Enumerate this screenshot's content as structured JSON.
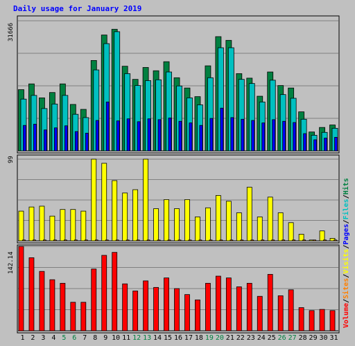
{
  "chart_data": {
    "title": "Daily usage for January 2019",
    "type": "bar",
    "categories": [
      "1",
      "2",
      "3",
      "4",
      "5",
      "6",
      "7",
      "8",
      "9",
      "10",
      "11",
      "12",
      "13",
      "14",
      "15",
      "16",
      "17",
      "18",
      "19",
      "20",
      "21",
      "22",
      "23",
      "24",
      "25",
      "26",
      "27",
      "28",
      "29",
      "30",
      "31"
    ],
    "weekend_days": [
      "5",
      "6",
      "12",
      "13",
      "19",
      "20",
      "26",
      "27"
    ],
    "weekend_color": "#008040",
    "weekday_color": "#000000",
    "panels": [
      {
        "name": "hits-files-pages",
        "max_label": "31666",
        "max": 31666,
        "series": [
          {
            "name": "Hits",
            "color": "#008040",
            "values": [
              14900,
              16300,
              12900,
              14200,
              16300,
              11300,
              10100,
              22000,
              28200,
              29600,
              20600,
              17400,
              20300,
              19500,
              21700,
              17800,
              15300,
              13200,
              20700,
              27800,
              26900,
              18800,
              17700,
              13300,
              19200,
              15900,
              15300,
              9500,
              4600,
              5700,
              6300
            ]
          },
          {
            "name": "Files",
            "color": "#00c0c0",
            "values": [
              12600,
              13500,
              10300,
              11400,
              13500,
              8900,
              8100,
              19700,
              26100,
              29000,
              18800,
              15900,
              17100,
              17300,
              19200,
              15800,
              12900,
              11200,
              17800,
              25100,
              25100,
              17400,
              16400,
              11900,
              17200,
              13700,
              12800,
              7700,
              3800,
              4500,
              5500
            ]
          },
          {
            "name": "Pages",
            "color": "#0000ff",
            "values": [
              6200,
              6500,
              5100,
              5600,
              6100,
              4700,
              4300,
              7400,
              11900,
              7300,
              7800,
              7100,
              7800,
              7600,
              8000,
              7200,
              6800,
              6200,
              7900,
              10400,
              8100,
              7700,
              7400,
              6800,
              7600,
              7200,
              6900,
              4200,
              2700,
              3100,
              3300
            ]
          }
        ]
      },
      {
        "name": "visits",
        "max_label": "99",
        "max": 99,
        "series": [
          {
            "name": "Visits",
            "color": "#ffff00",
            "values": [
              36,
              41,
              42,
              30,
              38,
              38,
              36,
              99,
              94,
              73,
              58,
              62,
              99,
              39,
              50,
              39,
              50,
              29,
              40,
              55,
              48,
              34,
              65,
              29,
              53,
              34,
              22,
              8,
              1,
              12,
              3
            ]
          },
          {
            "name": "Sites",
            "color": "#ff8000",
            "values": [
              1,
              1,
              1,
              1,
              1,
              1,
              1,
              1,
              1,
              1,
              1,
              1,
              1,
              1,
              1,
              1,
              1,
              1,
              1,
              1,
              1,
              1,
              1,
              1,
              1,
              1,
              1,
              1,
              1,
              1,
              1
            ]
          }
        ]
      },
      {
        "name": "volume",
        "max_label": "142.14",
        "max": 142.14,
        "series": [
          {
            "name": "Volume",
            "color": "#ff0000",
            "values": [
              142,
              123,
              100,
              86,
              80,
              48,
              48,
              104,
              127,
              132,
              79,
              67,
              84,
              73,
              89,
              71,
              61,
              52,
              80,
              92,
              89,
              74,
              80,
              58,
              95,
              59,
              69,
              39,
              34,
              36,
              34
            ]
          }
        ]
      }
    ],
    "legend": [
      {
        "text": "Volume",
        "color": "#ff0000"
      },
      {
        "text": "/",
        "color": "#000000"
      },
      {
        "text": "Sites",
        "color": "#ff8000"
      },
      {
        "text": "/",
        "color": "#000000"
      },
      {
        "text": "Visits",
        "color": "#ffff00"
      },
      {
        "text": "/",
        "color": "#000000"
      },
      {
        "text": "Pages",
        "color": "#0000ff"
      },
      {
        "text": "/",
        "color": "#000000"
      },
      {
        "text": "Files",
        "color": "#00c0c0"
      },
      {
        "text": "/",
        "color": "#000000"
      },
      {
        "text": "Hits",
        "color": "#008040"
      }
    ],
    "grid": true,
    "legend_position": "right-vertical"
  }
}
